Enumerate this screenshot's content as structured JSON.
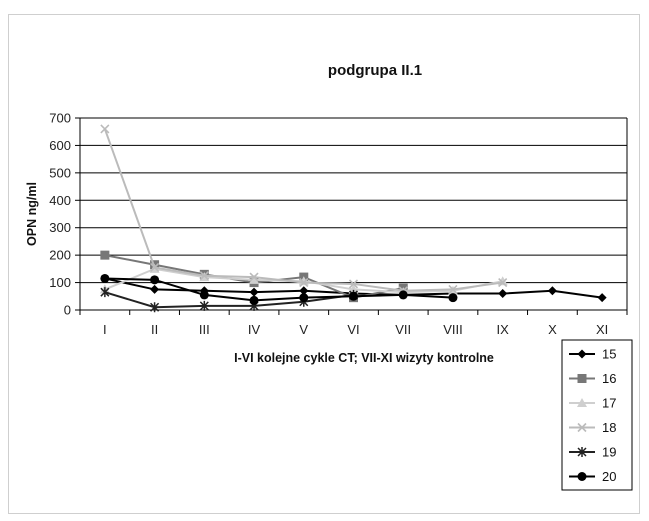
{
  "chart_data": {
    "type": "line",
    "title": "podgrupa II.1",
    "xlabel": "I-VI kolejne cykle CT; VII-XI wizyty kontrolne",
    "ylabel": "OPN ng/ml",
    "ylim": [
      0,
      700
    ],
    "yticks": [
      0,
      100,
      200,
      300,
      400,
      500,
      600,
      700
    ],
    "grid": "horizontal",
    "legend_position": "right",
    "categories": [
      "I",
      "II",
      "III",
      "IV",
      "V",
      "VI",
      "VII",
      "VIII",
      "IX",
      "X",
      "XI"
    ],
    "series": [
      {
        "name": "15",
        "color": "#000000",
        "marker": "diamond",
        "values": [
          115,
          75,
          70,
          65,
          70,
          60,
          55,
          60,
          60,
          70,
          45
        ]
      },
      {
        "name": "16",
        "color": "#777777",
        "marker": "square",
        "values": [
          200,
          165,
          130,
          100,
          120,
          45,
          80,
          null,
          null,
          null,
          null
        ]
      },
      {
        "name": "17",
        "color": "#cfcfcf",
        "marker": "triangle",
        "values": [
          75,
          150,
          120,
          110,
          105,
          75,
          65,
          70,
          105,
          null,
          null
        ]
      },
      {
        "name": "18",
        "color": "#bbbbbb",
        "marker": "x",
        "values": [
          660,
          155,
          125,
          120,
          100,
          95,
          70,
          75,
          100,
          null,
          null
        ]
      },
      {
        "name": "19",
        "color": "#222222",
        "marker": "star",
        "values": [
          65,
          10,
          15,
          15,
          30,
          55,
          null,
          null,
          null,
          null,
          null
        ]
      },
      {
        "name": "20",
        "color": "#000000",
        "marker": "circle",
        "values": [
          115,
          110,
          55,
          35,
          45,
          50,
          55,
          45,
          null,
          null,
          null
        ]
      }
    ]
  }
}
